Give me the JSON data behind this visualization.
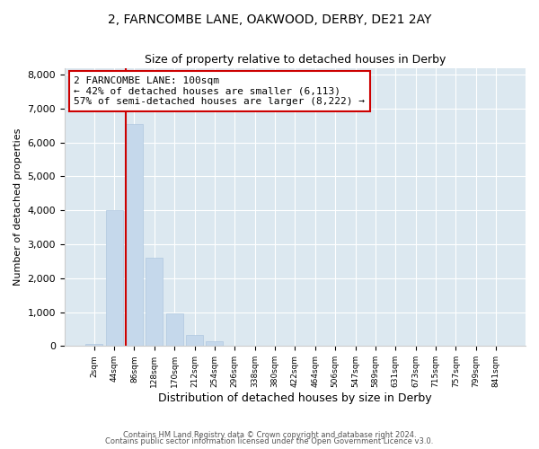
{
  "title1": "2, FARNCOMBE LANE, OAKWOOD, DERBY, DE21 2AY",
  "title2": "Size of property relative to detached houses in Derby",
  "xlabel": "Distribution of detached houses by size in Derby",
  "ylabel": "Number of detached properties",
  "categories": [
    "2sqm",
    "44sqm",
    "86sqm",
    "128sqm",
    "170sqm",
    "212sqm",
    "254sqm",
    "296sqm",
    "338sqm",
    "380sqm",
    "422sqm",
    "464sqm",
    "506sqm",
    "547sqm",
    "589sqm",
    "631sqm",
    "673sqm",
    "715sqm",
    "757sqm",
    "799sqm",
    "841sqm"
  ],
  "values": [
    50,
    4000,
    6550,
    2600,
    950,
    330,
    130,
    0,
    0,
    0,
    0,
    0,
    0,
    0,
    0,
    0,
    0,
    0,
    0,
    0,
    0
  ],
  "bar_color": "#c5d8eb",
  "bar_edgecolor": "#b0c8e0",
  "vline_x": 2,
  "vline_color": "#cc0000",
  "annotation_text": "2 FARNCOMBE LANE: 100sqm\n← 42% of detached houses are smaller (6,113)\n57% of semi-detached houses are larger (8,222) →",
  "box_edgecolor": "#cc0000",
  "ylim": [
    0,
    8200
  ],
  "yticks": [
    0,
    1000,
    2000,
    3000,
    4000,
    5000,
    6000,
    7000,
    8000
  ],
  "footer1": "Contains HM Land Registry data © Crown copyright and database right 2024.",
  "footer2": "Contains public sector information licensed under the Open Government Licence v3.0.",
  "bg_color": "#ffffff",
  "plot_bg_color": "#dce8f0"
}
